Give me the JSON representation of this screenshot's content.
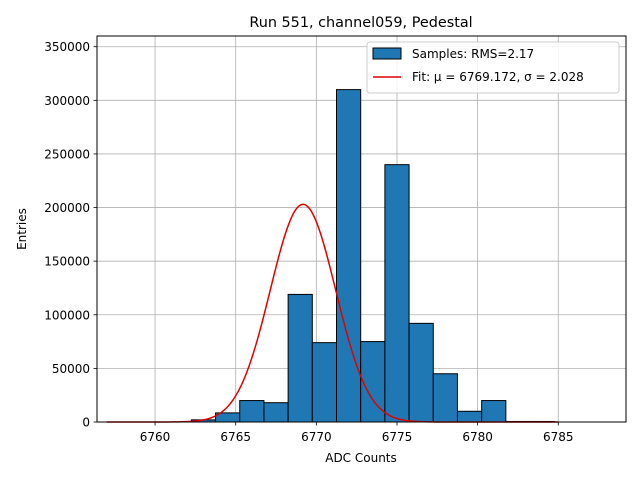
{
  "chart_data": {
    "type": "bar",
    "title": "Run 551, channel059, Pedestal",
    "xlabel": "ADC Counts",
    "ylabel": "Entries",
    "xlim": [
      6756.4,
      6789.2
    ],
    "ylim": [
      0,
      360000
    ],
    "xticks": [
      6760,
      6765,
      6770,
      6775,
      6780,
      6785
    ],
    "yticks": [
      0,
      50000,
      100000,
      150000,
      200000,
      250000,
      300000,
      350000
    ],
    "grid": true,
    "legend_position": "top-right",
    "colors": {
      "bars": "#1f77b4",
      "bar_edge": "#000000",
      "fit": "#e00000",
      "grid": "#b0b0b0"
    },
    "histogram": {
      "name": "Samples: RMS=2.17",
      "bin_width": 1.5,
      "bins": [
        {
          "x0": 6762.25,
          "value": 2000
        },
        {
          "x0": 6763.75,
          "value": 8500
        },
        {
          "x0": 6765.25,
          "value": 20000
        },
        {
          "x0": 6766.75,
          "value": 18000
        },
        {
          "x0": 6768.25,
          "value": 119000
        },
        {
          "x0": 6769.75,
          "value": 74000
        },
        {
          "x0": 6771.25,
          "value": 310000
        },
        {
          "x0": 6772.75,
          "value": 75000
        },
        {
          "x0": 6774.25,
          "value": 240000
        },
        {
          "x0": 6775.75,
          "value": 92000
        },
        {
          "x0": 6777.25,
          "value": 45000
        },
        {
          "x0": 6778.75,
          "value": 10000
        },
        {
          "x0": 6780.25,
          "value": 20000
        },
        {
          "x0": 6781.75,
          "value": 500
        },
        {
          "x0": 6783.25,
          "value": 500
        }
      ]
    },
    "fit": {
      "name": "Fit: μ = 6769.172, σ = 2.028",
      "mu": 6769.172,
      "sigma": 2.028,
      "amplitude": 203000,
      "x_range": [
        6757,
        6785
      ]
    }
  }
}
